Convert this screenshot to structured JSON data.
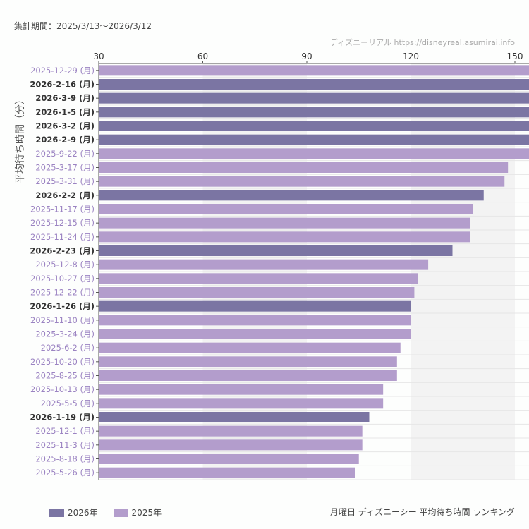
{
  "period_label": "集計期間：2025/3/13〜2026/3/12",
  "credit": "ディズニーリアル https://disneyreal.asumirai.info",
  "chart_data": {
    "type": "bar",
    "orientation": "horizontal",
    "title": "月曜日 ディズニーシー 平均待ち時間 ランキング",
    "ylabel": "平均待ち時間（分）",
    "xlim": [
      30,
      150
    ],
    "xticks": [
      30,
      60,
      90,
      120,
      150
    ],
    "grid": "alternating bands",
    "legend": "bottom-left",
    "colors": {
      "2026年": "#7b75a3",
      "2025年": "#b39dcc"
    },
    "series_names": [
      "2026年",
      "2025年"
    ],
    "categories": [
      "2025-12-29 (月)",
      "2026-2-16 (月)",
      "2026-3-9 (月)",
      "2026-1-5 (月)",
      "2026-3-2 (月)",
      "2026-2-9 (月)",
      "2025-9-22 (月)",
      "2025-3-17 (月)",
      "2025-3-31 (月)",
      "2026-2-2 (月)",
      "2025-11-17 (月)",
      "2025-12-15 (月)",
      "2025-11-24 (月)",
      "2026-2-23 (月)",
      "2025-12-8 (月)",
      "2025-10-27 (月)",
      "2025-12-22 (月)",
      "2026-1-26 (月)",
      "2025-11-10 (月)",
      "2025-3-24 (月)",
      "2025-6-2 (月)",
      "2025-10-20 (月)",
      "2025-8-25 (月)",
      "2025-10-13 (月)",
      "2025-5-5 (月)",
      "2026-1-19 (月)",
      "2025-12-1 (月)",
      "2025-11-3 (月)",
      "2025-8-18 (月)",
      "2025-5-26 (月)"
    ],
    "values": [
      155,
      155,
      155,
      155,
      155,
      155,
      155,
      148,
      147,
      141,
      138,
      137,
      137,
      132,
      125,
      122,
      121,
      120,
      120,
      120,
      117,
      116,
      116,
      112,
      112,
      108,
      106,
      106,
      105,
      104
    ],
    "year": [
      "2025年",
      "2026年",
      "2026年",
      "2026年",
      "2026年",
      "2026年",
      "2025年",
      "2025年",
      "2025年",
      "2026年",
      "2025年",
      "2025年",
      "2025年",
      "2026年",
      "2025年",
      "2025年",
      "2025年",
      "2026年",
      "2025年",
      "2025年",
      "2025年",
      "2025年",
      "2025年",
      "2025年",
      "2025年",
      "2026年",
      "2025年",
      "2025年",
      "2025年",
      "2025年"
    ]
  }
}
